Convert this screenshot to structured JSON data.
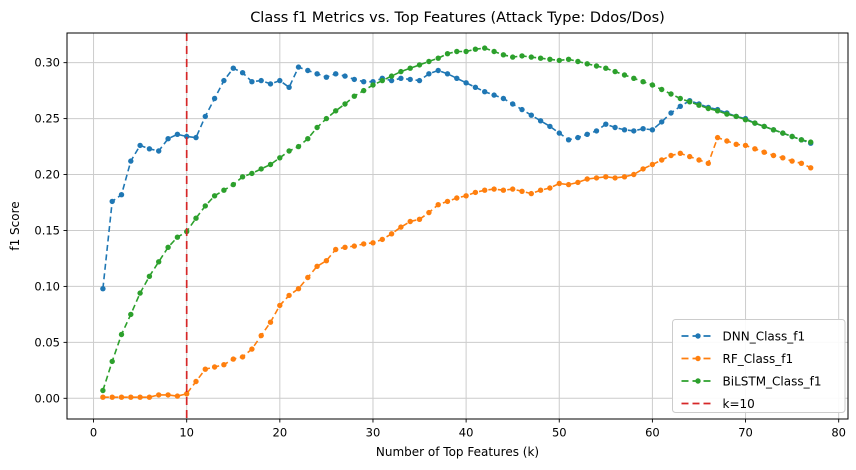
{
  "figure": {
    "title": "Class f1 Metrics vs. Top Features (Attack Type: Ddos/Dos)"
  },
  "chart_data": {
    "type": "line",
    "title": "Class f1 Metrics vs. Top Features (Attack Type: Ddos/Dos)",
    "xlabel": "Number of Top Features (k)",
    "ylabel": "f1 Score",
    "xticks": [
      0,
      10,
      20,
      30,
      40,
      50,
      60,
      70,
      80
    ],
    "xtick_labels": [
      "0",
      "10",
      "20",
      "30",
      "40",
      "50",
      "60",
      "70",
      "80"
    ],
    "yticks": [
      0.0,
      0.05,
      0.1,
      0.15,
      0.2,
      0.25,
      0.3
    ],
    "ytick_labels": [
      "0.00",
      "0.05",
      "0.10",
      "0.15",
      "0.20",
      "0.25",
      "0.30"
    ],
    "xlim": [
      -2.85,
      81.0
    ],
    "ylim": [
      -0.0185,
      0.3265
    ],
    "grid": true,
    "grid_color": "#cccccc",
    "legend_position": "lower right",
    "x": [
      1,
      2,
      3,
      4,
      5,
      6,
      7,
      8,
      9,
      10,
      11,
      12,
      13,
      14,
      15,
      16,
      17,
      18,
      19,
      20,
      21,
      22,
      23,
      24,
      25,
      26,
      27,
      28,
      29,
      30,
      31,
      32,
      33,
      34,
      35,
      36,
      37,
      38,
      39,
      40,
      41,
      42,
      43,
      44,
      45,
      46,
      47,
      48,
      49,
      50,
      51,
      52,
      53,
      54,
      55,
      56,
      57,
      58,
      59,
      60,
      61,
      62,
      63,
      64,
      65,
      66,
      67,
      68,
      69,
      70,
      71,
      72,
      73,
      74,
      75,
      76,
      77
    ],
    "series": [
      {
        "name": "DNN_Class_f1",
        "color": "#1f77b4",
        "values": [
          0.098,
          0.176,
          0.182,
          0.212,
          0.226,
          0.223,
          0.221,
          0.232,
          0.236,
          0.234,
          0.233,
          0.252,
          0.268,
          0.284,
          0.295,
          0.291,
          0.283,
          0.284,
          0.281,
          0.284,
          0.278,
          0.296,
          0.293,
          0.29,
          0.287,
          0.29,
          0.288,
          0.285,
          0.283,
          0.283,
          0.286,
          0.284,
          0.286,
          0.285,
          0.284,
          0.29,
          0.293,
          0.29,
          0.286,
          0.282,
          0.278,
          0.274,
          0.271,
          0.268,
          0.263,
          0.258,
          0.253,
          0.248,
          0.243,
          0.237,
          0.231,
          0.233,
          0.236,
          0.239,
          0.245,
          0.242,
          0.24,
          0.239,
          0.241,
          0.24,
          0.247,
          0.255,
          0.261,
          0.266,
          0.263,
          0.26,
          0.258,
          0.255,
          0.252,
          0.25,
          0.246,
          0.243,
          0.24,
          0.237,
          0.234,
          0.231,
          0.228
        ]
      },
      {
        "name": "RF_Class_f1",
        "color": "#ff7f0e",
        "values": [
          0.001,
          0.001,
          0.001,
          0.001,
          0.001,
          0.001,
          0.003,
          0.003,
          0.002,
          0.004,
          0.015,
          0.026,
          0.028,
          0.03,
          0.035,
          0.037,
          0.044,
          0.056,
          0.068,
          0.083,
          0.092,
          0.098,
          0.108,
          0.118,
          0.123,
          0.133,
          0.135,
          0.136,
          0.138,
          0.139,
          0.142,
          0.147,
          0.153,
          0.158,
          0.16,
          0.166,
          0.173,
          0.176,
          0.179,
          0.181,
          0.184,
          0.186,
          0.187,
          0.186,
          0.187,
          0.185,
          0.183,
          0.186,
          0.188,
          0.192,
          0.191,
          0.193,
          0.196,
          0.197,
          0.198,
          0.197,
          0.198,
          0.2,
          0.205,
          0.209,
          0.213,
          0.217,
          0.219,
          0.216,
          0.213,
          0.21,
          0.233,
          0.23,
          0.227,
          0.226,
          0.223,
          0.22,
          0.217,
          0.215,
          0.212,
          0.21,
          0.206
        ]
      },
      {
        "name": "BiLSTM_Class_f1",
        "color": "#2ca02c",
        "values": [
          0.007,
          0.033,
          0.057,
          0.075,
          0.094,
          0.109,
          0.122,
          0.135,
          0.144,
          0.149,
          0.161,
          0.172,
          0.181,
          0.186,
          0.191,
          0.198,
          0.201,
          0.205,
          0.209,
          0.215,
          0.221,
          0.225,
          0.232,
          0.242,
          0.25,
          0.257,
          0.263,
          0.27,
          0.275,
          0.28,
          0.284,
          0.288,
          0.292,
          0.295,
          0.298,
          0.301,
          0.304,
          0.308,
          0.31,
          0.31,
          0.312,
          0.313,
          0.31,
          0.307,
          0.305,
          0.306,
          0.305,
          0.304,
          0.303,
          0.302,
          0.303,
          0.301,
          0.299,
          0.297,
          0.295,
          0.292,
          0.289,
          0.286,
          0.283,
          0.28,
          0.276,
          0.272,
          0.268,
          0.265,
          0.262,
          0.259,
          0.257,
          0.254,
          0.252,
          0.249,
          0.246,
          0.243,
          0.24,
          0.237,
          0.234,
          0.231,
          0.229
        ]
      }
    ],
    "vline": {
      "x": 10,
      "label": "k=10",
      "color": "#d62728"
    },
    "legend_entries": [
      {
        "label": "DNN_Class_f1",
        "color": "#1f77b4",
        "marker": true
      },
      {
        "label": "RF_Class_f1",
        "color": "#ff7f0e",
        "marker": true
      },
      {
        "label": "BiLSTM_Class_f1",
        "color": "#2ca02c",
        "marker": true
      },
      {
        "label": "k=10",
        "color": "#d62728",
        "marker": false
      }
    ]
  }
}
